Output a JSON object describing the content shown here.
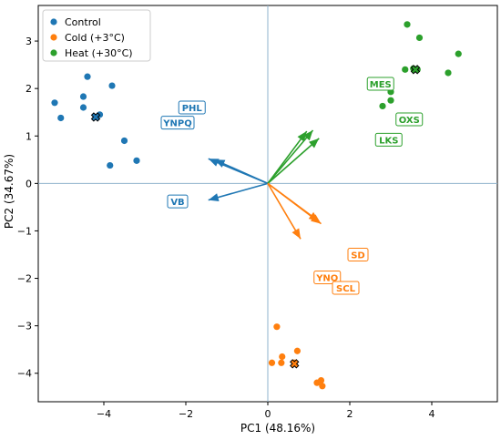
{
  "chart_data": {
    "type": "scatter",
    "xlabel": "PC1 (48.16%)",
    "ylabel": "PC2 (34.67%)",
    "xlim": [
      -5.6,
      5.6
    ],
    "ylim": [
      -4.6,
      3.75
    ],
    "xticks": [
      -4,
      -2,
      0,
      2,
      4
    ],
    "yticks": [
      -4,
      -3,
      -2,
      -1,
      0,
      1,
      2,
      3
    ],
    "tick_labels_x": [
      "−4",
      "−2",
      "0",
      "2",
      "4"
    ],
    "tick_labels_y": [
      "−4",
      "−3",
      "−2",
      "−1",
      "0",
      "1",
      "2",
      "3"
    ],
    "grid": false,
    "legend_position": "top-left",
    "series": [
      {
        "name": "Control",
        "color": "#1f77b4",
        "points": [
          [
            -5.2,
            1.7
          ],
          [
            -5.05,
            1.38
          ],
          [
            -4.4,
            2.25
          ],
          [
            -4.5,
            1.83
          ],
          [
            -4.5,
            1.6
          ],
          [
            -4.2,
            1.4
          ],
          [
            -4.1,
            1.45
          ],
          [
            -3.8,
            2.06
          ],
          [
            -3.5,
            0.9
          ],
          [
            -3.2,
            0.48
          ],
          [
            -3.85,
            0.38
          ]
        ],
        "centroid": [
          -4.2,
          1.4
        ]
      },
      {
        "name": "Cold (+3°C)",
        "color": "#ff7f0e",
        "points": [
          [
            0.22,
            -3.02
          ],
          [
            0.35,
            -3.65
          ],
          [
            0.33,
            -3.78
          ],
          [
            0.1,
            -3.78
          ],
          [
            0.65,
            -3.78
          ],
          [
            0.72,
            -3.53
          ],
          [
            1.2,
            -4.2
          ],
          [
            1.3,
            -4.15
          ],
          [
            1.33,
            -4.27
          ]
        ],
        "centroid": [
          0.65,
          -3.8
        ]
      },
      {
        "name": "Heat (+30°C)",
        "color": "#2ca02c",
        "points": [
          [
            3.4,
            3.35
          ],
          [
            3.7,
            3.07
          ],
          [
            3.35,
            2.4
          ],
          [
            3.55,
            2.42
          ],
          [
            3.65,
            2.4
          ],
          [
            4.4,
            2.33
          ],
          [
            4.65,
            2.73
          ],
          [
            3.0,
            1.93
          ],
          [
            3.0,
            1.75
          ],
          [
            2.8,
            1.63
          ]
        ],
        "centroid": [
          3.6,
          2.4
        ]
      }
    ],
    "loadings": [
      {
        "label": "PHL",
        "color": "#1f77b4",
        "vector": [
          -1.3,
          0.5
        ],
        "label_pos": [
          -1.85,
          1.6
        ]
      },
      {
        "label": "YNPQ",
        "color": "#1f77b4",
        "vector": [
          -1.45,
          0.52
        ],
        "label_pos": [
          -2.2,
          1.28
        ]
      },
      {
        "label": "VB",
        "color": "#1f77b4",
        "vector": [
          -1.45,
          -0.35
        ],
        "label_pos": [
          -2.2,
          -0.38
        ]
      },
      {
        "label": "MES",
        "color": "#2ca02c",
        "vector": [
          1.1,
          1.12
        ],
        "label_pos": [
          2.75,
          2.1
        ]
      },
      {
        "label": "OXS",
        "color": "#2ca02c",
        "vector": [
          1.25,
          0.95
        ],
        "label_pos": [
          3.45,
          1.35
        ]
      },
      {
        "label": "LKS",
        "color": "#2ca02c",
        "vector": [
          0.95,
          1.1
        ],
        "label_pos": [
          2.95,
          0.92
        ]
      },
      {
        "label": "SD",
        "color": "#ff7f0e",
        "vector": [
          1.3,
          -0.85
        ],
        "label_pos": [
          2.2,
          -1.5
        ]
      },
      {
        "label": "YNO",
        "color": "#ff7f0e",
        "vector": [
          1.25,
          -0.8
        ],
        "label_pos": [
          1.45,
          -1.98
        ]
      },
      {
        "label": "SCL",
        "color": "#ff7f0e",
        "vector": [
          0.8,
          -1.17
        ],
        "label_pos": [
          1.9,
          -2.2
        ]
      }
    ]
  }
}
